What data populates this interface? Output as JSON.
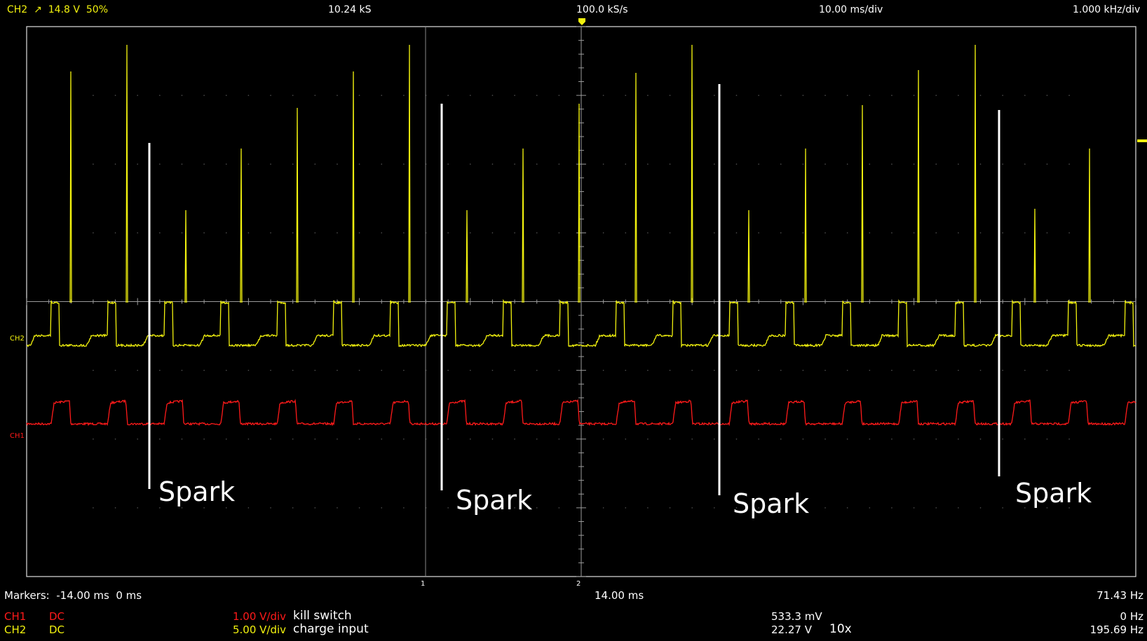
{
  "header": {
    "trigger_channel": "CH2",
    "trigger_slope_icon": "rising-edge-arrow",
    "trigger_level": "14.8 V",
    "trigger_position": "50%",
    "sample_count": "10.24 kS",
    "sample_rate": "100.0 kS/s",
    "timebase": "10.00 ms/div",
    "fft_scale": "1.000 kHz/div"
  },
  "channel_markers": {
    "ch2": "CH2",
    "ch1": "CH1",
    "cursor_1": "1",
    "cursor_2": "2"
  },
  "annotations": [
    {
      "label": "Spark"
    },
    {
      "label": "Spark"
    },
    {
      "label": "Spark"
    },
    {
      "label": "Spark"
    }
  ],
  "markers_row": {
    "label": "Markers:",
    "marker_a": "-14.00 ms",
    "marker_b": "0 ms",
    "delta_time": "14.00 ms",
    "delta_freq": "71.43 Hz"
  },
  "channels": [
    {
      "name": "CH1",
      "coupling": "DC",
      "scale": "1.00 V/div",
      "label": "kill switch",
      "measurement": "533.3 mV",
      "probe": "",
      "frequency": "0 Hz"
    },
    {
      "name": "CH2",
      "coupling": "DC",
      "scale": "5.00 V/div",
      "label": "charge input",
      "measurement": "22.27 V",
      "probe": "10x",
      "frequency": "195.69 Hz"
    }
  ],
  "colors": {
    "ch1": "#ff1a1a",
    "ch2": "#f2f20e",
    "grid": "#9a9a9a",
    "background": "#000000"
  }
}
